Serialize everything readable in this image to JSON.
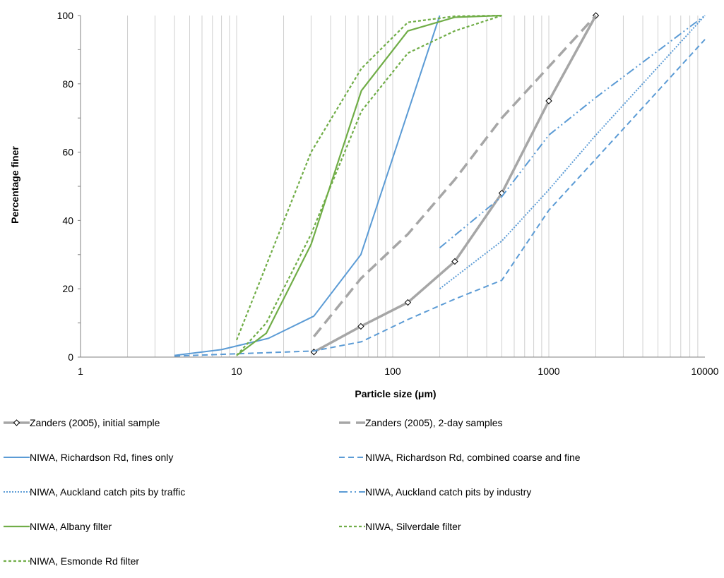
{
  "chart_data": {
    "type": "line",
    "title": "",
    "xlabel": "Particle size (μm)",
    "ylabel": "Percentage finer",
    "x_scale": "log",
    "xlim": [
      1,
      10000
    ],
    "ylim": [
      0,
      100
    ],
    "x_ticks": [
      1,
      10,
      100,
      1000,
      10000
    ],
    "x_tick_labels": [
      "1",
      "10",
      "100",
      "1000",
      "10000"
    ],
    "y_ticks": [
      0,
      20,
      40,
      60,
      80,
      100
    ],
    "y_tick_labels": [
      "0",
      "20",
      "40",
      "60",
      "80",
      "100"
    ],
    "grid": "vertical minor gridlines",
    "legend_position": "bottom",
    "series": [
      {
        "name": "Zanders (2005), initial sample",
        "color": "#A6A6A6",
        "dash": "solid",
        "width": 3.5,
        "marker": "diamond",
        "points": [
          [
            31.25,
            1.5
          ],
          [
            62.5,
            9
          ],
          [
            125,
            16
          ],
          [
            250,
            28
          ],
          [
            500,
            48
          ],
          [
            1000,
            75
          ],
          [
            2000,
            100
          ]
        ]
      },
      {
        "name": "Zanders (2005), 2-day samples",
        "color": "#A6A6A6",
        "dash": "long-dash",
        "width": 3.5,
        "marker": "none",
        "points": [
          [
            31.25,
            6
          ],
          [
            62.5,
            23
          ],
          [
            125,
            36
          ],
          [
            250,
            52
          ],
          [
            500,
            70
          ],
          [
            1000,
            85
          ],
          [
            2000,
            100
          ]
        ]
      },
      {
        "name": "NIWA, Richardson Rd, fines only",
        "color": "#5B9BD5",
        "dash": "solid",
        "width": 2,
        "marker": "none",
        "points": [
          [
            4,
            0.5
          ],
          [
            8,
            2.2
          ],
          [
            16,
            5.5
          ],
          [
            31.25,
            12
          ],
          [
            62.5,
            30
          ],
          [
            200,
            100
          ]
        ]
      },
      {
        "name": "NIWA, Richardson Rd, combined coarse and fine",
        "color": "#5B9BD5",
        "dash": "dash",
        "width": 2,
        "marker": "none",
        "points": [
          [
            4,
            0.3
          ],
          [
            31.25,
            1.8
          ],
          [
            63,
            4.5
          ],
          [
            125,
            11
          ],
          [
            250,
            17
          ],
          [
            500,
            22.5
          ],
          [
            1000,
            43
          ],
          [
            2000,
            58
          ],
          [
            10000,
            93
          ]
        ]
      },
      {
        "name": "NIWA, Auckland catch pits by traffic",
        "color": "#5B9BD5",
        "dash": "dot",
        "width": 2,
        "marker": "none",
        "points": [
          [
            200,
            20
          ],
          [
            500,
            34
          ],
          [
            1000,
            49
          ],
          [
            2000,
            65
          ],
          [
            10000,
            100
          ]
        ]
      },
      {
        "name": "NIWA, Auckland catch pits by industry",
        "color": "#5B9BD5",
        "dash": "dash-dot-dot",
        "width": 2,
        "marker": "none",
        "points": [
          [
            200,
            32
          ],
          [
            500,
            47
          ],
          [
            1000,
            65
          ],
          [
            2000,
            76
          ],
          [
            10000,
            100
          ]
        ]
      },
      {
        "name": "NIWA, Albany filter",
        "color": "#70AD47",
        "dash": "solid",
        "width": 2.2,
        "marker": "none",
        "points": [
          [
            10,
            0.5
          ],
          [
            15.5,
            7
          ],
          [
            30,
            33
          ],
          [
            63,
            78
          ],
          [
            125,
            95.5
          ],
          [
            250,
            99.5
          ],
          [
            500,
            100
          ]
        ]
      },
      {
        "name": "NIWA, Silverdale filter",
        "color": "#70AD47",
        "dash": "short-dash",
        "width": 2.2,
        "marker": "none",
        "points": [
          [
            10,
            5
          ],
          [
            30,
            60
          ],
          [
            63,
            84.5
          ],
          [
            125,
            98
          ],
          [
            250,
            99.8
          ],
          [
            500,
            100
          ]
        ]
      },
      {
        "name": "NIWA, Esmonde Rd filter",
        "color": "#70AD47",
        "dash": "short-dash",
        "width": 2.2,
        "marker": "none",
        "points": [
          [
            10,
            0.5
          ],
          [
            15.5,
            10
          ],
          [
            30,
            36
          ],
          [
            63,
            72
          ],
          [
            125,
            89
          ],
          [
            250,
            95.5
          ],
          [
            500,
            100
          ]
        ]
      }
    ]
  }
}
